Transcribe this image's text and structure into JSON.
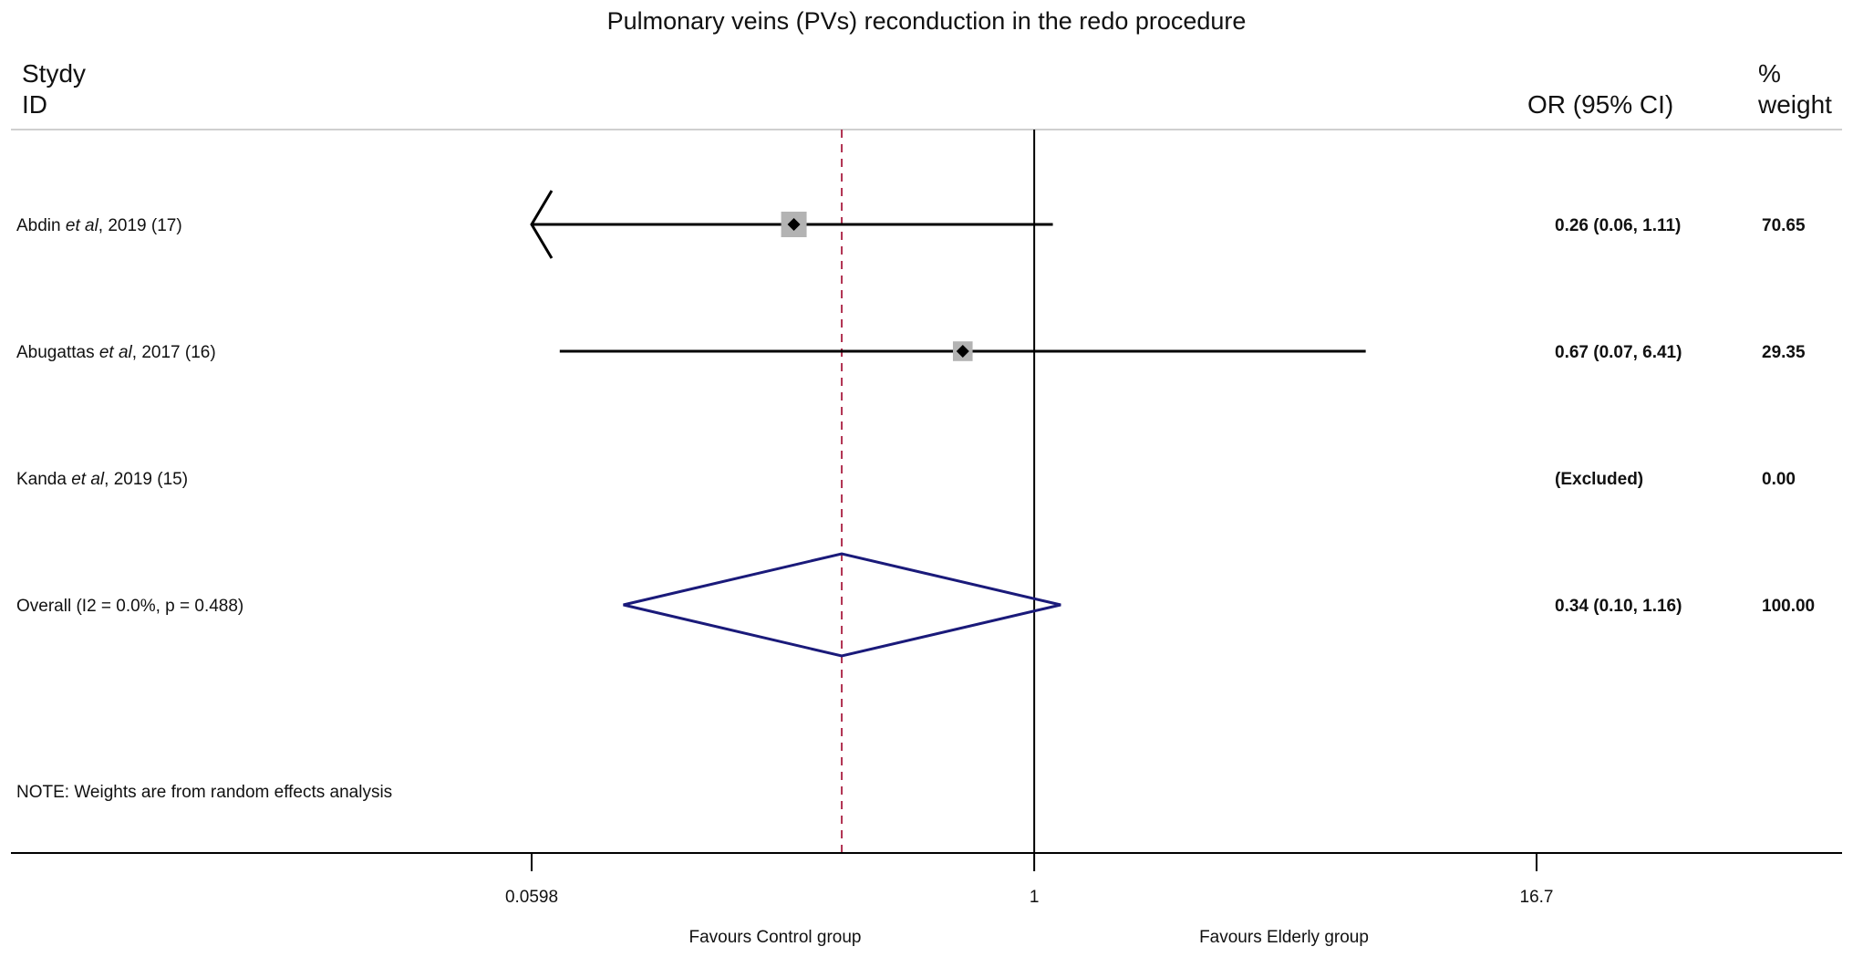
{
  "chart_data": {
    "type": "forest",
    "title": "Pulmonary veins (PVs) reconduction in the redo procedure",
    "header": {
      "study_label_line1": "Stydy",
      "study_label_line2": "ID",
      "effect_label": "OR (95% CI)",
      "weight_label_line1": "%",
      "weight_label_line2": "weight"
    },
    "x_scale": "log",
    "xlim": [
      0.0598,
      16.7
    ],
    "x_ticks": [
      "0.0598",
      "1",
      "16.7"
    ],
    "null_line": 1,
    "pooled_line": 0.34,
    "studies": [
      {
        "author": "Abdin",
        "etal": "et al",
        "rest": ", 2019 (17)",
        "or": 0.26,
        "lo": 0.06,
        "hi": 1.11,
        "or_text": "0.26 (0.06, 1.11)",
        "weight": "70.65",
        "excluded": false,
        "arrow_left": true
      },
      {
        "author": "Abugattas",
        "etal": "et al",
        "rest": ", 2017 (16)",
        "or": 0.67,
        "lo": 0.07,
        "hi": 6.41,
        "or_text": "0.67 (0.07, 6.41)",
        "weight": "29.35",
        "excluded": false,
        "arrow_left": false
      },
      {
        "author": "Kanda",
        "etal": "et al",
        "rest": ", 2019 (15)",
        "or": null,
        "lo": null,
        "hi": null,
        "or_text": "(Excluded)",
        "weight": "0.00",
        "excluded": true,
        "arrow_left": false
      }
    ],
    "overall": {
      "label": "Overall  (I2 = 0.0%, p = 0.488)",
      "or": 0.34,
      "lo": 0.1,
      "hi": 1.16,
      "or_text": "0.34 (0.10, 1.16)",
      "weight": "100.00"
    },
    "note": "NOTE: Weights are from random effects analysis",
    "favours_left": "Favours Control group",
    "favours_right": "Favours Elderly group",
    "colors": {
      "marker_box": "#b3b3b3",
      "diamond": "#1a1a7a",
      "pooled_line": "#b03050",
      "line": "#000000"
    }
  }
}
